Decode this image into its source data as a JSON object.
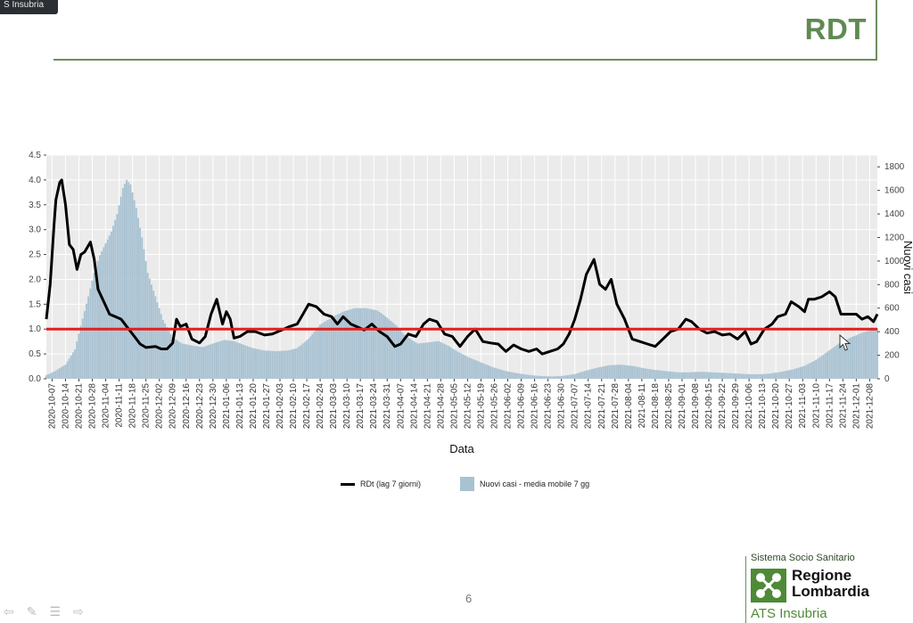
{
  "window_label": "S Insubria",
  "slide": {
    "title": "RDT",
    "page_number": "6"
  },
  "footer": {
    "line1": "Sistema Socio Sanitario",
    "brand_line1": "Regione",
    "brand_line2": "Lombardia",
    "org": "ATS Insubria"
  },
  "colors": {
    "accent_green": "#5f8a52",
    "bar_fill": "#a9c2d2",
    "threshold_red": "#e02020",
    "line_black": "#000000"
  },
  "chart_data": {
    "type": "bar",
    "xlabel": "Data",
    "ylabel": "",
    "y2label": "Nuovi casi",
    "ylim": [
      0,
      4.5
    ],
    "y2lim": [
      0,
      1900
    ],
    "yticks": [
      "0.0",
      "0.5",
      "1.0",
      "1.5",
      "2.0",
      "2.5",
      "3.0",
      "3.5",
      "4.0",
      "4.5"
    ],
    "y2ticks": [
      "0",
      "200",
      "400",
      "600",
      "800",
      "1000",
      "1200",
      "1400",
      "1600",
      "1800"
    ],
    "x_start": "2020-10-04",
    "x_end": "2021-12-12",
    "x_tick_labels": [
      "2020-10-07",
      "2020-10-14",
      "2020-10-21",
      "2020-10-28",
      "2020-11-04",
      "2020-11-11",
      "2020-11-18",
      "2020-11-25",
      "2020-12-02",
      "2020-12-09",
      "2020-12-16",
      "2020-12-23",
      "2020-12-30",
      "2021-01-06",
      "2021-01-13",
      "2021-01-20",
      "2021-01-27",
      "2021-02-03",
      "2021-02-10",
      "2021-02-17",
      "2021-02-24",
      "2021-03-03",
      "2021-03-10",
      "2021-03-17",
      "2021-03-24",
      "2021-03-31",
      "2021-04-07",
      "2021-04-14",
      "2021-04-21",
      "2021-04-28",
      "2021-05-05",
      "2021-05-12",
      "2021-05-19",
      "2021-05-26",
      "2021-06-02",
      "2021-06-09",
      "2021-06-16",
      "2021-06-23",
      "2021-06-30",
      "2021-07-07",
      "2021-07-14",
      "2021-07-21",
      "2021-07-28",
      "2021-08-04",
      "2021-08-11",
      "2021-08-18",
      "2021-08-25",
      "2021-09-01",
      "2021-09-08",
      "2021-09-15",
      "2021-09-22",
      "2021-09-29",
      "2021-10-06",
      "2021-10-13",
      "2021-10-20",
      "2021-10-27",
      "2021-11-03",
      "2021-11-10",
      "2021-11-17",
      "2021-11-24",
      "2021-12-01",
      "2021-12-08"
    ],
    "threshold": 1.0,
    "grid": true,
    "legend_position": "bottom",
    "series": [
      {
        "name": "RDt (lag 7 giorni)",
        "type": "line",
        "axis": "left",
        "points": [
          [
            "2020-10-04",
            1.2
          ],
          [
            "2020-10-06",
            1.9
          ],
          [
            "2020-10-08",
            3.1
          ],
          [
            "2020-10-09",
            3.6
          ],
          [
            "2020-10-11",
            3.95
          ],
          [
            "2020-10-12",
            4.0
          ],
          [
            "2020-10-14",
            3.5
          ],
          [
            "2020-10-16",
            2.7
          ],
          [
            "2020-10-18",
            2.6
          ],
          [
            "2020-10-20",
            2.2
          ],
          [
            "2020-10-22",
            2.5
          ],
          [
            "2020-10-24",
            2.55
          ],
          [
            "2020-10-27",
            2.75
          ],
          [
            "2020-10-29",
            2.4
          ],
          [
            "2020-10-31",
            1.8
          ],
          [
            "2020-11-03",
            1.55
          ],
          [
            "2020-11-06",
            1.3
          ],
          [
            "2020-11-09",
            1.25
          ],
          [
            "2020-11-12",
            1.2
          ],
          [
            "2020-11-15",
            1.05
          ],
          [
            "2020-11-19",
            0.85
          ],
          [
            "2020-11-22",
            0.7
          ],
          [
            "2020-11-25",
            0.63
          ],
          [
            "2020-11-30",
            0.65
          ],
          [
            "2020-12-03",
            0.6
          ],
          [
            "2020-12-06",
            0.6
          ],
          [
            "2020-12-09",
            0.72
          ],
          [
            "2020-12-11",
            1.2
          ],
          [
            "2020-12-13",
            1.05
          ],
          [
            "2020-12-16",
            1.1
          ],
          [
            "2020-12-19",
            0.8
          ],
          [
            "2020-12-23",
            0.72
          ],
          [
            "2020-12-26",
            0.85
          ],
          [
            "2020-12-29",
            1.3
          ],
          [
            "2021-01-01",
            1.6
          ],
          [
            "2021-01-04",
            1.1
          ],
          [
            "2021-01-06",
            1.35
          ],
          [
            "2021-01-08",
            1.2
          ],
          [
            "2021-01-10",
            0.82
          ],
          [
            "2021-01-13",
            0.85
          ],
          [
            "2021-01-17",
            0.95
          ],
          [
            "2021-01-21",
            0.95
          ],
          [
            "2021-01-26",
            0.88
          ],
          [
            "2021-01-30",
            0.9
          ],
          [
            "2021-02-04",
            0.98
          ],
          [
            "2021-02-08",
            1.05
          ],
          [
            "2021-02-12",
            1.1
          ],
          [
            "2021-02-15",
            1.3
          ],
          [
            "2021-02-18",
            1.5
          ],
          [
            "2021-02-22",
            1.45
          ],
          [
            "2021-02-26",
            1.3
          ],
          [
            "2021-03-02",
            1.25
          ],
          [
            "2021-03-05",
            1.1
          ],
          [
            "2021-03-08",
            1.25
          ],
          [
            "2021-03-12",
            1.1
          ],
          [
            "2021-03-15",
            1.05
          ],
          [
            "2021-03-19",
            0.98
          ],
          [
            "2021-03-23",
            1.1
          ],
          [
            "2021-03-27",
            0.95
          ],
          [
            "2021-03-31",
            0.85
          ],
          [
            "2021-04-04",
            0.65
          ],
          [
            "2021-04-07",
            0.7
          ],
          [
            "2021-04-11",
            0.9
          ],
          [
            "2021-04-15",
            0.85
          ],
          [
            "2021-04-19",
            1.1
          ],
          [
            "2021-04-22",
            1.2
          ],
          [
            "2021-04-26",
            1.15
          ],
          [
            "2021-04-30",
            0.9
          ],
          [
            "2021-05-04",
            0.85
          ],
          [
            "2021-05-08",
            0.65
          ],
          [
            "2021-05-12",
            0.85
          ],
          [
            "2021-05-16",
            1.0
          ],
          [
            "2021-05-20",
            0.75
          ],
          [
            "2021-05-24",
            0.72
          ],
          [
            "2021-05-28",
            0.7
          ],
          [
            "2021-06-01",
            0.55
          ],
          [
            "2021-06-05",
            0.68
          ],
          [
            "2021-06-09",
            0.6
          ],
          [
            "2021-06-13",
            0.55
          ],
          [
            "2021-06-17",
            0.6
          ],
          [
            "2021-06-20",
            0.5
          ],
          [
            "2021-06-24",
            0.55
          ],
          [
            "2021-06-28",
            0.6
          ],
          [
            "2021-07-01",
            0.7
          ],
          [
            "2021-07-04",
            0.9
          ],
          [
            "2021-07-07",
            1.2
          ],
          [
            "2021-07-10",
            1.6
          ],
          [
            "2021-07-13",
            2.1
          ],
          [
            "2021-07-17",
            2.4
          ],
          [
            "2021-07-20",
            1.9
          ],
          [
            "2021-07-23",
            1.8
          ],
          [
            "2021-07-26",
            2.0
          ],
          [
            "2021-07-29",
            1.5
          ],
          [
            "2021-08-02",
            1.2
          ],
          [
            "2021-08-06",
            0.8
          ],
          [
            "2021-08-10",
            0.75
          ],
          [
            "2021-08-14",
            0.7
          ],
          [
            "2021-08-18",
            0.65
          ],
          [
            "2021-08-22",
            0.8
          ],
          [
            "2021-08-26",
            0.95
          ],
          [
            "2021-08-30",
            1.0
          ],
          [
            "2021-09-03",
            1.2
          ],
          [
            "2021-09-06",
            1.15
          ],
          [
            "2021-09-10",
            1.0
          ],
          [
            "2021-09-14",
            0.92
          ],
          [
            "2021-09-18",
            0.95
          ],
          [
            "2021-09-22",
            0.88
          ],
          [
            "2021-09-26",
            0.9
          ],
          [
            "2021-09-30",
            0.8
          ],
          [
            "2021-10-04",
            0.95
          ],
          [
            "2021-10-07",
            0.7
          ],
          [
            "2021-10-10",
            0.75
          ],
          [
            "2021-10-14",
            1.0
          ],
          [
            "2021-10-18",
            1.1
          ],
          [
            "2021-10-21",
            1.25
          ],
          [
            "2021-10-25",
            1.3
          ],
          [
            "2021-10-28",
            1.55
          ],
          [
            "2021-11-01",
            1.45
          ],
          [
            "2021-11-04",
            1.35
          ],
          [
            "2021-11-06",
            1.6
          ],
          [
            "2021-11-09",
            1.6
          ],
          [
            "2021-11-13",
            1.65
          ],
          [
            "2021-11-17",
            1.75
          ],
          [
            "2021-11-20",
            1.65
          ],
          [
            "2021-11-23",
            1.3
          ],
          [
            "2021-11-27",
            1.3
          ],
          [
            "2021-12-01",
            1.3
          ],
          [
            "2021-12-04",
            1.2
          ],
          [
            "2021-12-07",
            1.25
          ],
          [
            "2021-12-10",
            1.15
          ],
          [
            "2021-12-12",
            1.3
          ]
        ]
      },
      {
        "name": "Nuovi casi - media mobile 7 gg",
        "type": "bar",
        "axis": "right",
        "points": [
          [
            "2020-10-04",
            30
          ],
          [
            "2020-10-08",
            60
          ],
          [
            "2020-10-14",
            120
          ],
          [
            "2020-10-19",
            250
          ],
          [
            "2020-10-22",
            450
          ],
          [
            "2020-10-26",
            700
          ],
          [
            "2020-10-29",
            900
          ],
          [
            "2020-11-01",
            1050
          ],
          [
            "2020-11-04",
            1150
          ],
          [
            "2020-11-07",
            1250
          ],
          [
            "2020-11-10",
            1400
          ],
          [
            "2020-11-13",
            1620
          ],
          [
            "2020-11-15",
            1690
          ],
          [
            "2020-11-17",
            1650
          ],
          [
            "2020-11-20",
            1450
          ],
          [
            "2020-11-23",
            1200
          ],
          [
            "2020-11-26",
            900
          ],
          [
            "2020-11-30",
            700
          ],
          [
            "2020-12-04",
            500
          ],
          [
            "2020-12-09",
            350
          ],
          [
            "2020-12-14",
            300
          ],
          [
            "2020-12-20",
            280
          ],
          [
            "2020-12-25",
            270
          ],
          [
            "2020-12-30",
            300
          ],
          [
            "2021-01-05",
            330
          ],
          [
            "2021-01-10",
            320
          ],
          [
            "2021-01-15",
            290
          ],
          [
            "2021-01-20",
            260
          ],
          [
            "2021-01-26",
            240
          ],
          [
            "2021-02-01",
            235
          ],
          [
            "2021-02-07",
            240
          ],
          [
            "2021-02-12",
            260
          ],
          [
            "2021-02-18",
            340
          ],
          [
            "2021-02-24",
            460
          ],
          [
            "2021-03-02",
            520
          ],
          [
            "2021-03-08",
            570
          ],
          [
            "2021-03-14",
            600
          ],
          [
            "2021-03-20",
            600
          ],
          [
            "2021-03-26",
            580
          ],
          [
            "2021-03-31",
            520
          ],
          [
            "2021-04-05",
            450
          ],
          [
            "2021-04-10",
            360
          ],
          [
            "2021-04-16",
            300
          ],
          [
            "2021-04-22",
            310
          ],
          [
            "2021-04-27",
            320
          ],
          [
            "2021-05-02",
            280
          ],
          [
            "2021-05-07",
            230
          ],
          [
            "2021-05-13",
            180
          ],
          [
            "2021-05-19",
            140
          ],
          [
            "2021-05-25",
            100
          ],
          [
            "2021-05-31",
            70
          ],
          [
            "2021-06-06",
            50
          ],
          [
            "2021-06-12",
            35
          ],
          [
            "2021-06-18",
            25
          ],
          [
            "2021-06-25",
            20
          ],
          [
            "2021-07-01",
            25
          ],
          [
            "2021-07-07",
            40
          ],
          [
            "2021-07-13",
            70
          ],
          [
            "2021-07-19",
            95
          ],
          [
            "2021-07-25",
            115
          ],
          [
            "2021-07-31",
            120
          ],
          [
            "2021-08-06",
            110
          ],
          [
            "2021-08-12",
            90
          ],
          [
            "2021-08-18",
            75
          ],
          [
            "2021-08-24",
            65
          ],
          [
            "2021-08-30",
            55
          ],
          [
            "2021-09-05",
            55
          ],
          [
            "2021-09-11",
            60
          ],
          [
            "2021-09-17",
            55
          ],
          [
            "2021-09-23",
            50
          ],
          [
            "2021-09-29",
            45
          ],
          [
            "2021-10-05",
            40
          ],
          [
            "2021-10-11",
            38
          ],
          [
            "2021-10-17",
            45
          ],
          [
            "2021-10-23",
            60
          ],
          [
            "2021-10-29",
            80
          ],
          [
            "2021-11-04",
            110
          ],
          [
            "2021-11-10",
            160
          ],
          [
            "2021-11-16",
            230
          ],
          [
            "2021-11-22",
            300
          ],
          [
            "2021-11-28",
            350
          ],
          [
            "2021-12-04",
            390
          ],
          [
            "2021-12-12",
            430
          ]
        ]
      }
    ]
  }
}
